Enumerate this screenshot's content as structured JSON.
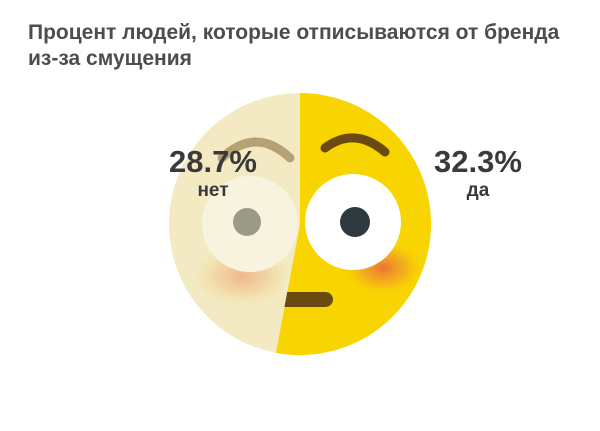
{
  "chart_data": {
    "type": "pie",
    "title": "Процент людей, которые отписываются от бренда из-за смущения",
    "slices": [
      {
        "value_label": "28.7%",
        "label": "нет",
        "value": 28.7,
        "color": "#f3eac4"
      },
      {
        "value_label": "32.3%",
        "label": "да",
        "value": 32.3,
        "color": "#f8d400"
      }
    ],
    "legend": "none",
    "start_angle_deg": 0
  },
  "colors": {
    "face_yellow": "#f8d400",
    "face_faded": "#f3eac4",
    "text": "#3a3a3a",
    "pupil": "#2e3a40",
    "mouth": "#6b4a12",
    "blush": "#e8623a"
  }
}
